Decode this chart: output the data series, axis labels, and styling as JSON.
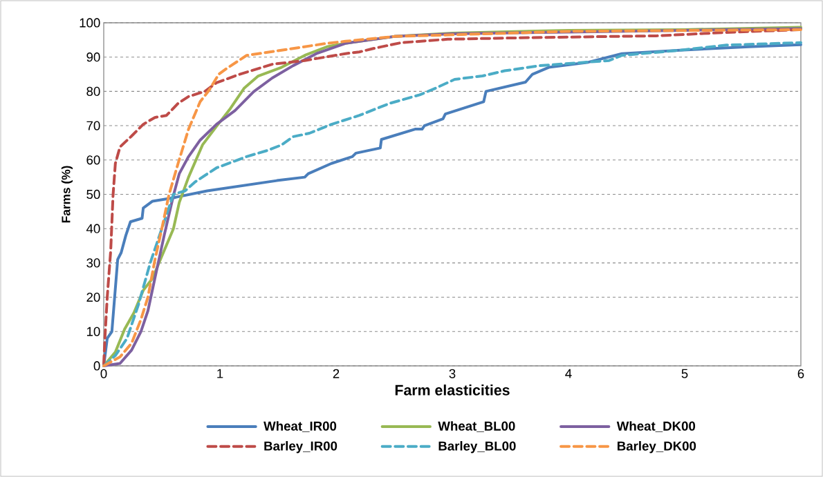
{
  "chart_data": {
    "type": "line",
    "xlabel": "Farm elasticities",
    "ylabel": "Farms (%)",
    "xlim": [
      0,
      6
    ],
    "xticks": [
      0,
      1,
      2,
      3,
      4,
      5,
      6
    ],
    "ylim": [
      0,
      100
    ],
    "yticks": [
      0,
      10,
      20,
      30,
      40,
      50,
      60,
      70,
      80,
      90,
      100
    ],
    "grid": "y",
    "legend": "bottom",
    "marker": "none",
    "series": [
      {
        "name": "Wheat_IR00",
        "color": "#4a7ebb",
        "line_style": "solid",
        "x": [
          0,
          0.03,
          0.07,
          0.12,
          0.15,
          0.19,
          0.23,
          0.33,
          0.34,
          0.42,
          0.6,
          0.89,
          1.19,
          1.49,
          1.73,
          1.76,
          1.96,
          2.14,
          2.17,
          2.38,
          2.39,
          2.68,
          2.74,
          2.76,
          2.92,
          2.94,
          3.27,
          3.29,
          3.63,
          3.69,
          3.83,
          4.17,
          4.46,
          4.96,
          5.55,
          6
        ],
        "values": [
          0,
          8,
          10,
          31,
          33,
          38,
          42,
          43,
          46,
          48,
          49,
          51,
          52.5,
          54,
          55,
          56,
          59,
          61,
          62,
          63.5,
          66,
          69,
          69,
          70,
          72,
          73.4,
          77,
          80,
          82.7,
          85,
          87,
          88.5,
          91,
          92,
          93,
          93.6
        ]
      },
      {
        "name": "Wheat_BL00",
        "color": "#98b954",
        "line_style": "solid",
        "x": [
          0,
          0.1,
          0.18,
          0.26,
          0.34,
          0.42,
          0.5,
          0.6,
          0.65,
          0.73,
          0.85,
          0.97,
          1.09,
          1.21,
          1.33,
          1.53,
          1.73,
          1.92,
          2.08,
          2.5,
          3,
          4,
          5,
          6
        ],
        "values": [
          0,
          4,
          10.7,
          15.5,
          22,
          25.5,
          32,
          40,
          47.6,
          55,
          64.4,
          69.8,
          75,
          81,
          84.5,
          87,
          90.5,
          93,
          94,
          96,
          97,
          97.8,
          98,
          98.7
        ]
      },
      {
        "name": "Wheat_DK00",
        "color": "#7d60a0",
        "line_style": "solid",
        "x": [
          0,
          0.14,
          0.24,
          0.32,
          0.38,
          0.44,
          0.52,
          0.6,
          0.65,
          0.73,
          0.83,
          0.97,
          1.13,
          1.29,
          1.45,
          1.63,
          1.83,
          2.08,
          2.5,
          3,
          4,
          5,
          6
        ],
        "values": [
          0,
          0.7,
          4.6,
          10,
          16,
          25.5,
          38,
          49.7,
          56,
          61,
          65.8,
          70.4,
          74.4,
          79.9,
          83.9,
          87.5,
          91,
          94,
          96,
          96.8,
          97.3,
          97.8,
          98.3
        ]
      },
      {
        "name": "Barley_IR00",
        "color": "#be4b48",
        "line_style": "dashed",
        "x": [
          0,
          0.01,
          0.03,
          0.06,
          0.08,
          0.1,
          0.14,
          0.24,
          0.34,
          0.44,
          0.54,
          0.64,
          0.73,
          0.87,
          0.97,
          1.17,
          1.45,
          1.73,
          2.08,
          2.2,
          2.32,
          2.56,
          2.96,
          3.55,
          4.35,
          4.76,
          5.36,
          6
        ],
        "values": [
          0.6,
          8,
          20,
          33.6,
          49.7,
          59,
          63.8,
          67,
          70.4,
          72.4,
          73,
          76.5,
          78.5,
          80,
          82.5,
          85,
          87.9,
          89,
          91,
          91.5,
          92.5,
          94.2,
          95.2,
          95.6,
          96,
          96.2,
          97.2,
          98
        ]
      },
      {
        "name": "Barley_BL00",
        "color": "#4bacc6",
        "line_style": "dashed",
        "x": [
          0,
          0.1,
          0.2,
          0.3,
          0.4,
          0.5,
          0.6,
          0.7,
          0.79,
          0.97,
          1.23,
          1.41,
          1.53,
          1.63,
          1.77,
          1.96,
          2.2,
          2.46,
          2.72,
          2.86,
          3.02,
          3.26,
          3.45,
          3.75,
          4.35,
          4.46,
          4.96,
          5.36,
          6
        ],
        "values": [
          0,
          3,
          8,
          18,
          30,
          40,
          50,
          51,
          53.7,
          57.7,
          61,
          62.8,
          64.4,
          66.8,
          67.8,
          70.4,
          73,
          76.5,
          79,
          81,
          83.5,
          84.5,
          86,
          87.5,
          89,
          90.5,
          92,
          93.5,
          94.2
        ]
      },
      {
        "name": "Barley_DK00",
        "color": "#f79646",
        "line_style": "dashed",
        "x": [
          0,
          0.14,
          0.24,
          0.32,
          0.38,
          0.44,
          0.5,
          0.56,
          0.64,
          0.73,
          0.83,
          0.91,
          0.99,
          1.05,
          1.23,
          1.53,
          1.92,
          2.08,
          2.5,
          4,
          6
        ],
        "values": [
          0,
          2.6,
          6.6,
          13.5,
          20,
          30.8,
          40,
          49.7,
          59,
          69,
          77,
          80.5,
          85,
          86.5,
          90.5,
          92,
          94,
          94.6,
          96,
          97.5,
          98
        ]
      }
    ]
  }
}
